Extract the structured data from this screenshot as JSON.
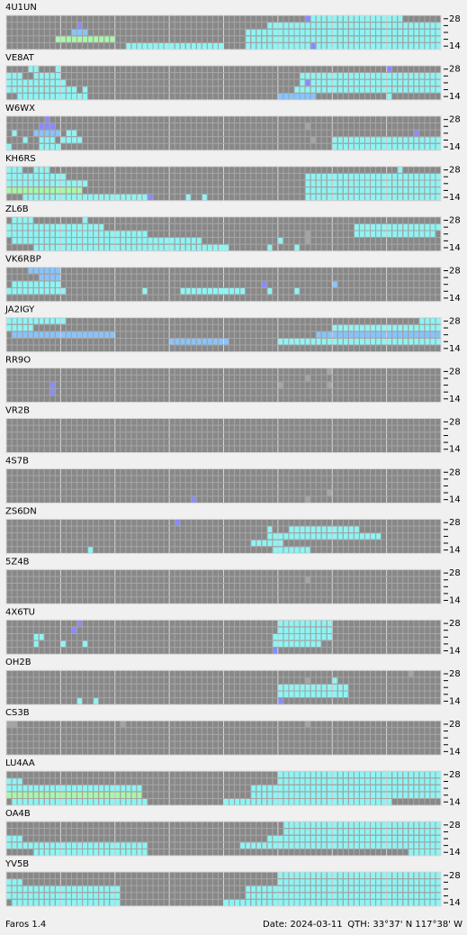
{
  "band_labels": [
    28,
    14
  ],
  "colors": {
    "c": "#8ef4f4",
    "b": "#8a8aff",
    "l": "#86c4ff",
    "g": "#a8f8a8",
    "d": "#a4a4a4"
  },
  "panels": [
    {
      "name": "4U1UN",
      "rows": [
        "55b 56-72c",
        "13b 48-79c",
        "12-14l 44-79c",
        "9-19g 44-79c",
        "22-39c 44-79c 56b"
      ]
    },
    {
      "name": "VE8AT",
      "rows": [
        "4-5c 9c 70b",
        "0-2c 5-9c 54-79c",
        "0-10c 54-79c 55b",
        "0-12c 14c 53-79c",
        "2-14c 50-56l 70c"
      ]
    },
    {
      "name": "W6WX",
      "rows": [
        "7b",
        "6-8b 55d",
        "1c 5-9l 11-12c 75b",
        "3c 6-8c 10-13c 56d 60-79c",
        "0c 6-9c 60-79c"
      ]
    },
    {
      "name": "KH6RS",
      "rows": [
        "0-2c 5-7c 72c",
        "0-10c 55-79c",
        "0-14c 55-79c",
        "0-13g 55-79c",
        "3-25c 26b 33c 36c 55-79c"
      ]
    },
    {
      "name": "ZL6B",
      "rows": [
        "1-4c 14c",
        "0-17c 64-79c",
        "0-25c 55d 64-78c",
        "1-35c 50c 55d",
        "5-40c 48c 53c"
      ]
    },
    {
      "name": "VK6RBP",
      "rows": [
        "4-9l",
        "6-9l",
        "1-9c 47b 60l",
        "0-10c 25c 32-43c 48c 53c",
        ""
      ]
    },
    {
      "name": "JA2IGY",
      "rows": [
        "0-10c 76-79c",
        "0-4c 60-79c",
        "1-19l 57-79l",
        "30-40l 50-79c",
        ""
      ]
    },
    {
      "name": "RR9O",
      "rows": [
        "59d",
        "55d",
        "8b 50d 59d",
        "8b",
        ""
      ]
    },
    {
      "name": "VR2B",
      "rows": [
        "",
        "",
        "",
        "",
        ""
      ]
    },
    {
      "name": "4S7B",
      "rows": [
        "",
        "",
        "",
        "59d",
        "34b 55d"
      ]
    },
    {
      "name": "ZS6DN",
      "rows": [
        "31b",
        "48c 52-64c",
        "48-68c",
        "45-50c",
        "15c 49-55c"
      ]
    },
    {
      "name": "5Z4B",
      "rows": [
        "",
        "55d",
        "",
        "",
        ""
      ]
    },
    {
      "name": "4X6TU",
      "rows": [
        "13b 50-59c",
        "12b 50-59c",
        "5-6c 49-59c",
        "5c 10c 14c 49-57c",
        "49b"
      ]
    },
    {
      "name": "OH2B",
      "rows": [
        "74d",
        "55d 60c",
        "50-62c",
        "50-62c",
        "13c 16c 50b"
      ]
    },
    {
      "name": "CS3B",
      "rows": [
        "0-1d 21d 55d",
        "",
        "",
        "",
        ""
      ]
    },
    {
      "name": "LU4AA",
      "rows": [
        "50-79c",
        "0-2c 50-79c",
        "0-24c 45-79c",
        "0-24g 45-79c",
        "1-25c 40-70c"
      ]
    },
    {
      "name": "OA4B",
      "rows": [
        "51-79c",
        "51-79c",
        "0-2c 48-79c",
        "0-25c 43-79c",
        "5-25c 74-79c"
      ]
    },
    {
      "name": "YV5B",
      "rows": [
        "50-79c",
        "0-2c 50-79c",
        "0-20c 44-79c",
        "0-20c 44-79c",
        "1-20c 40-79c"
      ]
    }
  ],
  "footer": {
    "app": "Faros 1.4",
    "date": "Date: 2024-03-11",
    "qth": "QTH: 33°37' N  117°38' W"
  }
}
